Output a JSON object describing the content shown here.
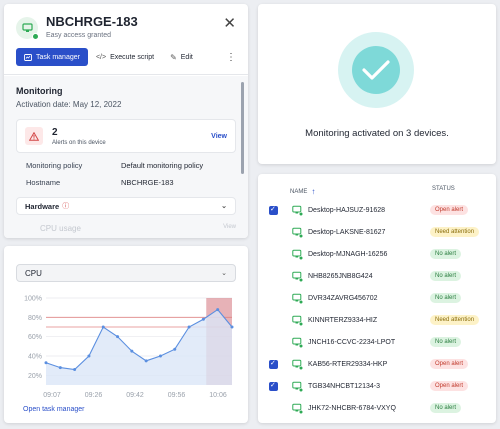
{
  "device": {
    "name": "NBCHRGE-183",
    "subtitle": "Easy access granted",
    "icon": "monitor-icon",
    "toolbar": {
      "task_manager": "Task manager",
      "execute_script": "Execute script",
      "edit": "Edit"
    },
    "monitoring": {
      "title": "Monitoring",
      "activation": "Activation date: May 12, 2022",
      "alerts_count": "2",
      "alerts_label": "Alerts on this device",
      "view": "View",
      "policy_key": "Monitoring policy",
      "policy_value": "Default monitoring policy",
      "hostname_key": "Hostname",
      "hostname_value": "NBCHRGE-183"
    },
    "hardware_label": "Hardware",
    "cpu_usage_label": "CPU usage",
    "cpu_usage_view": "View"
  },
  "cpu": {
    "select_label": "CPU",
    "open_task_manager": "Open task manager",
    "chart_data": {
      "type": "line",
      "title": "",
      "xlabel": "",
      "ylabel": "",
      "x_ticks": [
        "09:07",
        "09:26",
        "09:42",
        "09:56",
        "10:06"
      ],
      "y_ticks": [
        "100%",
        "80%",
        "60%",
        "40%",
        "20%"
      ],
      "ylim": [
        10,
        100
      ],
      "series": [
        {
          "x": [
            0,
            1,
            2,
            3,
            4,
            5,
            6,
            7,
            8,
            9,
            10,
            11,
            12,
            13
          ],
          "values": [
            33,
            28,
            26,
            40,
            70,
            60,
            45,
            35,
            40,
            47,
            70,
            78,
            88,
            70
          ]
        }
      ],
      "threshold_lines": [
        80,
        70
      ],
      "highlight_range": [
        11.2,
        13
      ],
      "grid": true,
      "colors": {
        "line": "#5b8fe0",
        "fill": "#dbe6f8",
        "threshold": "#e08585",
        "highlight": "#c9545f"
      }
    }
  },
  "activated": {
    "message": "Monitoring activated on 3 devices.",
    "colors": {
      "outer": "#d7f3f2",
      "inner": "#7ed9d8"
    }
  },
  "table": {
    "col_name": "NAME",
    "col_status": "STATUS",
    "rows": [
      {
        "name": "Desktop-HAJSUZ-91628",
        "status": "Open alert",
        "kind": "open",
        "checked": true
      },
      {
        "name": "Desktop-LAKSNE-81627",
        "status": "Need attention",
        "kind": "need",
        "checked": false
      },
      {
        "name": "Desktop-MJNAGH-16256",
        "status": "No alert",
        "kind": "no",
        "checked": false
      },
      {
        "name": "NHB8265JNB8G424",
        "status": "No alert",
        "kind": "no",
        "checked": false
      },
      {
        "name": "DVR34ZAVRG456702",
        "status": "No alert",
        "kind": "no",
        "checked": false
      },
      {
        "name": "KINNRTERZ9334-HIZ",
        "status": "Need attention",
        "kind": "need",
        "checked": false
      },
      {
        "name": "JNCH16-CCVC-2234-LPOT",
        "status": "No alert",
        "kind": "no",
        "checked": false
      },
      {
        "name": "KAB56-RTER29334-HKP",
        "status": "Open alert",
        "kind": "open",
        "checked": true
      },
      {
        "name": "TGB34NHCBT12134-3",
        "status": "Open alert",
        "kind": "open",
        "checked": true
      },
      {
        "name": "JHK72-NHCBR-6784-VXYQ",
        "status": "No alert",
        "kind": "no",
        "checked": false
      }
    ]
  }
}
